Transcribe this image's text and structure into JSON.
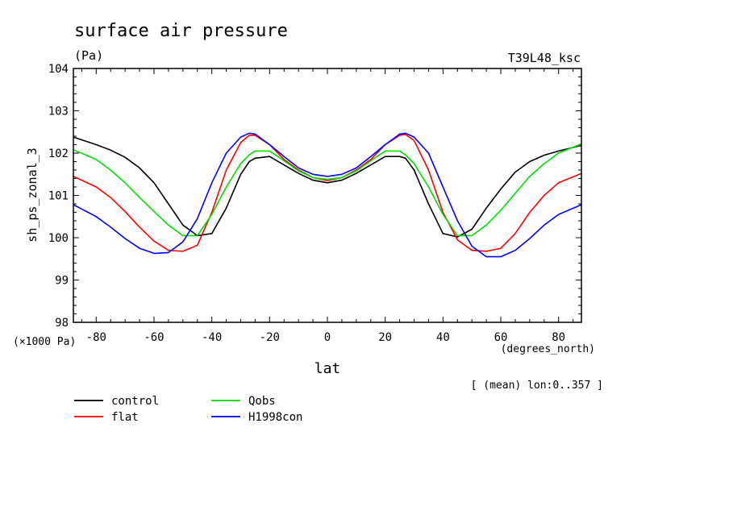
{
  "chart_data": {
    "type": "line",
    "title": "surface air pressure",
    "units": "(Pa)",
    "run_label": "T39L48_ksc",
    "ylabel": "sh_ps_zonal_3",
    "yscale_label": "(×1000 Pa)",
    "xlabel": "lat",
    "xunits": "(degrees_north)",
    "note": "[ (mean) lon:0..357 ]",
    "xlim": [
      -87.9,
      87.9
    ],
    "ylim": [
      98,
      104
    ],
    "xticks": [
      -80,
      -60,
      -40,
      -20,
      0,
      20,
      40,
      60,
      80
    ],
    "yticks": [
      98,
      99,
      100,
      101,
      102,
      103,
      104
    ],
    "x": [
      -88,
      -80,
      -75,
      -70,
      -65,
      -60,
      -55,
      -50,
      -45,
      -40,
      -35,
      -30,
      -27,
      -25,
      -20,
      -15,
      -10,
      -5,
      0,
      5,
      10,
      15,
      20,
      25,
      27,
      30,
      35,
      40,
      45,
      50,
      55,
      60,
      65,
      70,
      75,
      80,
      88
    ],
    "series": [
      {
        "name": "control",
        "color": "#000000",
        "values": [
          102.38,
          102.2,
          102.07,
          101.9,
          101.65,
          101.3,
          100.8,
          100.3,
          100.05,
          100.1,
          100.7,
          101.5,
          101.8,
          101.88,
          101.92,
          101.72,
          101.52,
          101.36,
          101.3,
          101.36,
          101.52,
          101.72,
          101.92,
          101.92,
          101.88,
          101.6,
          100.8,
          100.1,
          100.02,
          100.2,
          100.7,
          101.15,
          101.55,
          101.8,
          101.95,
          102.05,
          102.18
        ]
      },
      {
        "name": "flat",
        "color": "#ff0000",
        "values": [
          101.45,
          101.2,
          100.95,
          100.62,
          100.25,
          99.92,
          99.7,
          99.68,
          99.82,
          100.6,
          101.6,
          102.25,
          102.42,
          102.42,
          102.2,
          101.85,
          101.6,
          101.42,
          101.35,
          101.42,
          101.6,
          101.85,
          102.2,
          102.42,
          102.44,
          102.3,
          101.6,
          100.6,
          99.95,
          99.7,
          99.68,
          99.75,
          100.1,
          100.6,
          101.0,
          101.3,
          101.52
        ]
      },
      {
        "name": "Qobs",
        "color": "#00dd00",
        "values": [
          102.08,
          101.85,
          101.6,
          101.3,
          100.95,
          100.62,
          100.3,
          100.05,
          100.05,
          100.55,
          101.2,
          101.75,
          101.96,
          102.05,
          102.05,
          101.82,
          101.58,
          101.42,
          101.38,
          101.42,
          101.58,
          101.82,
          102.05,
          102.05,
          101.96,
          101.75,
          101.2,
          100.55,
          100.05,
          100.05,
          100.3,
          100.65,
          101.05,
          101.45,
          101.75,
          102.0,
          102.22
        ]
      },
      {
        "name": "H1998con",
        "color": "#0000ff",
        "values": [
          100.78,
          100.5,
          100.25,
          99.98,
          99.75,
          99.63,
          99.65,
          99.9,
          100.45,
          101.3,
          102.0,
          102.38,
          102.47,
          102.45,
          102.2,
          101.92,
          101.65,
          101.5,
          101.45,
          101.5,
          101.65,
          101.92,
          102.2,
          102.45,
          102.47,
          102.38,
          102.0,
          101.2,
          100.4,
          99.8,
          99.55,
          99.55,
          99.7,
          99.98,
          100.3,
          100.55,
          100.78
        ]
      }
    ]
  }
}
